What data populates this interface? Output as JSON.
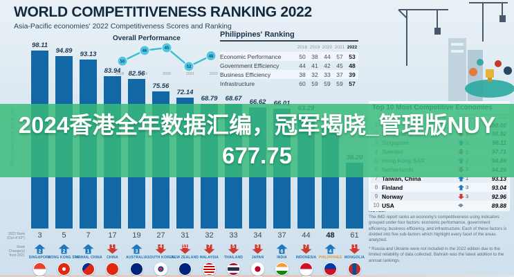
{
  "page": {
    "title": "WORLD COMPETITIVENESS RANKING 2022",
    "subtitle": "Asia-Pacific economies' 2022 Competitiveness Scores and Ranking"
  },
  "overlay": {
    "line1": "2024香港全年数据汇编，冠军揭晓_管理版NUY",
    "line2": "677.75"
  },
  "axis": {
    "score_axis_label": "2022 Overall Score (Out of 100)",
    "rank_row_label": "2022 Rank (Out of 63*)",
    "change_row_label": "Rank Change(s) from 2021"
  },
  "overall_performance": {
    "title": "Overall Performance",
    "years": [
      "2018",
      "2019",
      "2020",
      "2021",
      "2022"
    ],
    "ranks": [
      50,
      46,
      45,
      52,
      48
    ]
  },
  "philippines_ranking": {
    "title": "Philippines' Ranking",
    "years": [
      "2018",
      "2019",
      "2020",
      "2021",
      "2022"
    ],
    "rows": [
      {
        "label": "Economic Performance",
        "values": [
          "50",
          "38",
          "44",
          "57",
          "53"
        ]
      },
      {
        "label": "Government Efficiency",
        "values": [
          "44",
          "41",
          "42",
          "45",
          "48"
        ]
      },
      {
        "label": "Business Efficiency",
        "values": [
          "38",
          "32",
          "33",
          "37",
          "39"
        ]
      },
      {
        "label": "Infrastructure",
        "values": [
          "60",
          "59",
          "59",
          "59",
          "57"
        ]
      }
    ]
  },
  "chart_data": {
    "type": "bar",
    "title": "Asia-Pacific economies' 2022 Competitiveness Scores and Ranking",
    "ylabel": "2022 Overall Score (Out of 100)",
    "ylim": [
      0,
      100
    ],
    "categories": [
      "SINGAPORE",
      "HONG KONG SAR",
      "TAIWAN, CHINA",
      "CHINA",
      "AUSTRALIA",
      "SOUTH KOREA",
      "NEW ZEALAND",
      "MALAYSIA",
      "THAILAND",
      "JAPAN",
      "INDIA",
      "INDONESIA",
      "PHILIPPINES",
      "MONGOLIA"
    ],
    "values": [
      98.11,
      94.89,
      93.13,
      83.94,
      82.56,
      75.56,
      72.14,
      68.79,
      68.67,
      66.62,
      66.01,
      63.29,
      null,
      36.2
    ],
    "bars": [
      {
        "country": "SINGAPORE",
        "flag": "singapore",
        "score": 98.11,
        "score_label": "98.11",
        "rank": "3",
        "change": "2",
        "direction": "up",
        "highlight": false
      },
      {
        "country": "HONG KONG SAR",
        "flag": "hong-kong",
        "score": 94.89,
        "score_label": "94.89",
        "rank": "5",
        "change": "2",
        "direction": "up",
        "highlight": false
      },
      {
        "country": "TAIWAN, CHINA",
        "flag": "taiwan",
        "score": 93.13,
        "score_label": "93.13",
        "rank": "7",
        "change": "1",
        "direction": "up",
        "highlight": false
      },
      {
        "country": "CHINA",
        "flag": "china",
        "score": 83.94,
        "score_label": "83.94",
        "rank": "17",
        "change": "1",
        "direction": "down",
        "highlight": false
      },
      {
        "country": "AUSTRALIA",
        "flag": "australia",
        "score": 82.56,
        "score_label": "82.56",
        "rank": "19",
        "change": "3",
        "direction": "up",
        "highlight": false
      },
      {
        "country": "SOUTH KOREA",
        "flag": "south-korea",
        "score": 75.56,
        "score_label": "75.56",
        "rank": "27",
        "change": "4",
        "direction": "down",
        "highlight": false
      },
      {
        "country": "NEW ZEALAND",
        "flag": "new-zealand",
        "score": 72.14,
        "score_label": "72.14",
        "rank": "31",
        "change": "11",
        "direction": "down",
        "highlight": false
      },
      {
        "country": "MALAYSIA",
        "flag": "malaysia",
        "score": 68.79,
        "score_label": "68.79",
        "rank": "32",
        "change": "7",
        "direction": "down",
        "highlight": false
      },
      {
        "country": "THAILAND",
        "flag": "thailand",
        "score": 68.67,
        "score_label": "68.67",
        "rank": "33",
        "change": "5",
        "direction": "down",
        "highlight": false
      },
      {
        "country": "JAPAN",
        "flag": "japan",
        "score": 66.62,
        "score_label": "66.62",
        "rank": "34",
        "change": "3",
        "direction": "down",
        "highlight": false
      },
      {
        "country": "INDIA",
        "flag": "india",
        "score": 66.01,
        "score_label": "66.01",
        "rank": "37",
        "change": "6",
        "direction": "up",
        "highlight": false
      },
      {
        "country": "INDONESIA",
        "flag": "indonesia",
        "score": 63.29,
        "score_label": "63.29",
        "rank": "44",
        "change": "7",
        "direction": "down",
        "highlight": false
      },
      {
        "country": "PHILIPPINES",
        "flag": "philippines",
        "score": null,
        "est_score": 55.5,
        "score_label": "",
        "rank": "48",
        "change": "4",
        "direction": "up",
        "highlight": true
      },
      {
        "country": "MONGOLIA",
        "flag": "mongolia",
        "score": 36.2,
        "score_label": "36.20",
        "rank": "61",
        "change": "1",
        "direction": "down",
        "highlight": false
      }
    ]
  },
  "top10": {
    "title": "Top 10 Most Competitive Economies",
    "change_header": "Rank Change from 2021",
    "score_header": "2022 Overall Score (Out of 100)",
    "rows": [
      {
        "rank": "1",
        "country": "",
        "direction": "",
        "change": "",
        "score": "100.00",
        "emph": false
      },
      {
        "rank": "2",
        "country": "Switzerland",
        "direction": "down",
        "change": "1",
        "score": "98.92",
        "emph": false
      },
      {
        "rank": "3",
        "country": "Singapore",
        "direction": "up",
        "change": "2",
        "score": "98.11",
        "emph": false
      },
      {
        "rank": "4",
        "country": "Sweden",
        "direction": "down",
        "change": "2",
        "score": "97.71",
        "emph": false
      },
      {
        "rank": "5",
        "country": "Hong Kong SAR",
        "direction": "up",
        "change": "2",
        "score": "94.89",
        "emph": false
      },
      {
        "rank": "6",
        "country": "Netherlands",
        "direction": "down",
        "change": "2",
        "score": "94.29",
        "emph": false
      },
      {
        "rank": "7",
        "country": "Taiwan, China",
        "direction": "up",
        "change": "1",
        "score": "93.13",
        "emph": true
      },
      {
        "rank": "8",
        "country": "Finland",
        "direction": "up",
        "change": "3",
        "score": "93.04",
        "emph": true
      },
      {
        "rank": "9",
        "country": "Norway",
        "direction": "down",
        "change": "3",
        "score": "92.96",
        "emph": true
      },
      {
        "rank": "10",
        "country": "USA",
        "direction": "none",
        "change": "",
        "score": "89.88",
        "emph": true
      }
    ]
  },
  "notes": {
    "heading": "NOTES:",
    "paragraph1": "The IMD report ranks an economy's competitiveness using indicators grouped under four factors: economic performance, government efficiency, business efficiency, and infrastructure. Each of these factors is divided into five sub-factors which highlight every facet of the areas analyzed.",
    "paragraph2": "* Russia and Ukraine were not included in the 2022 edition due to the limited reliability of data collected. Bahrain was the latest addition to the annual rankings."
  }
}
